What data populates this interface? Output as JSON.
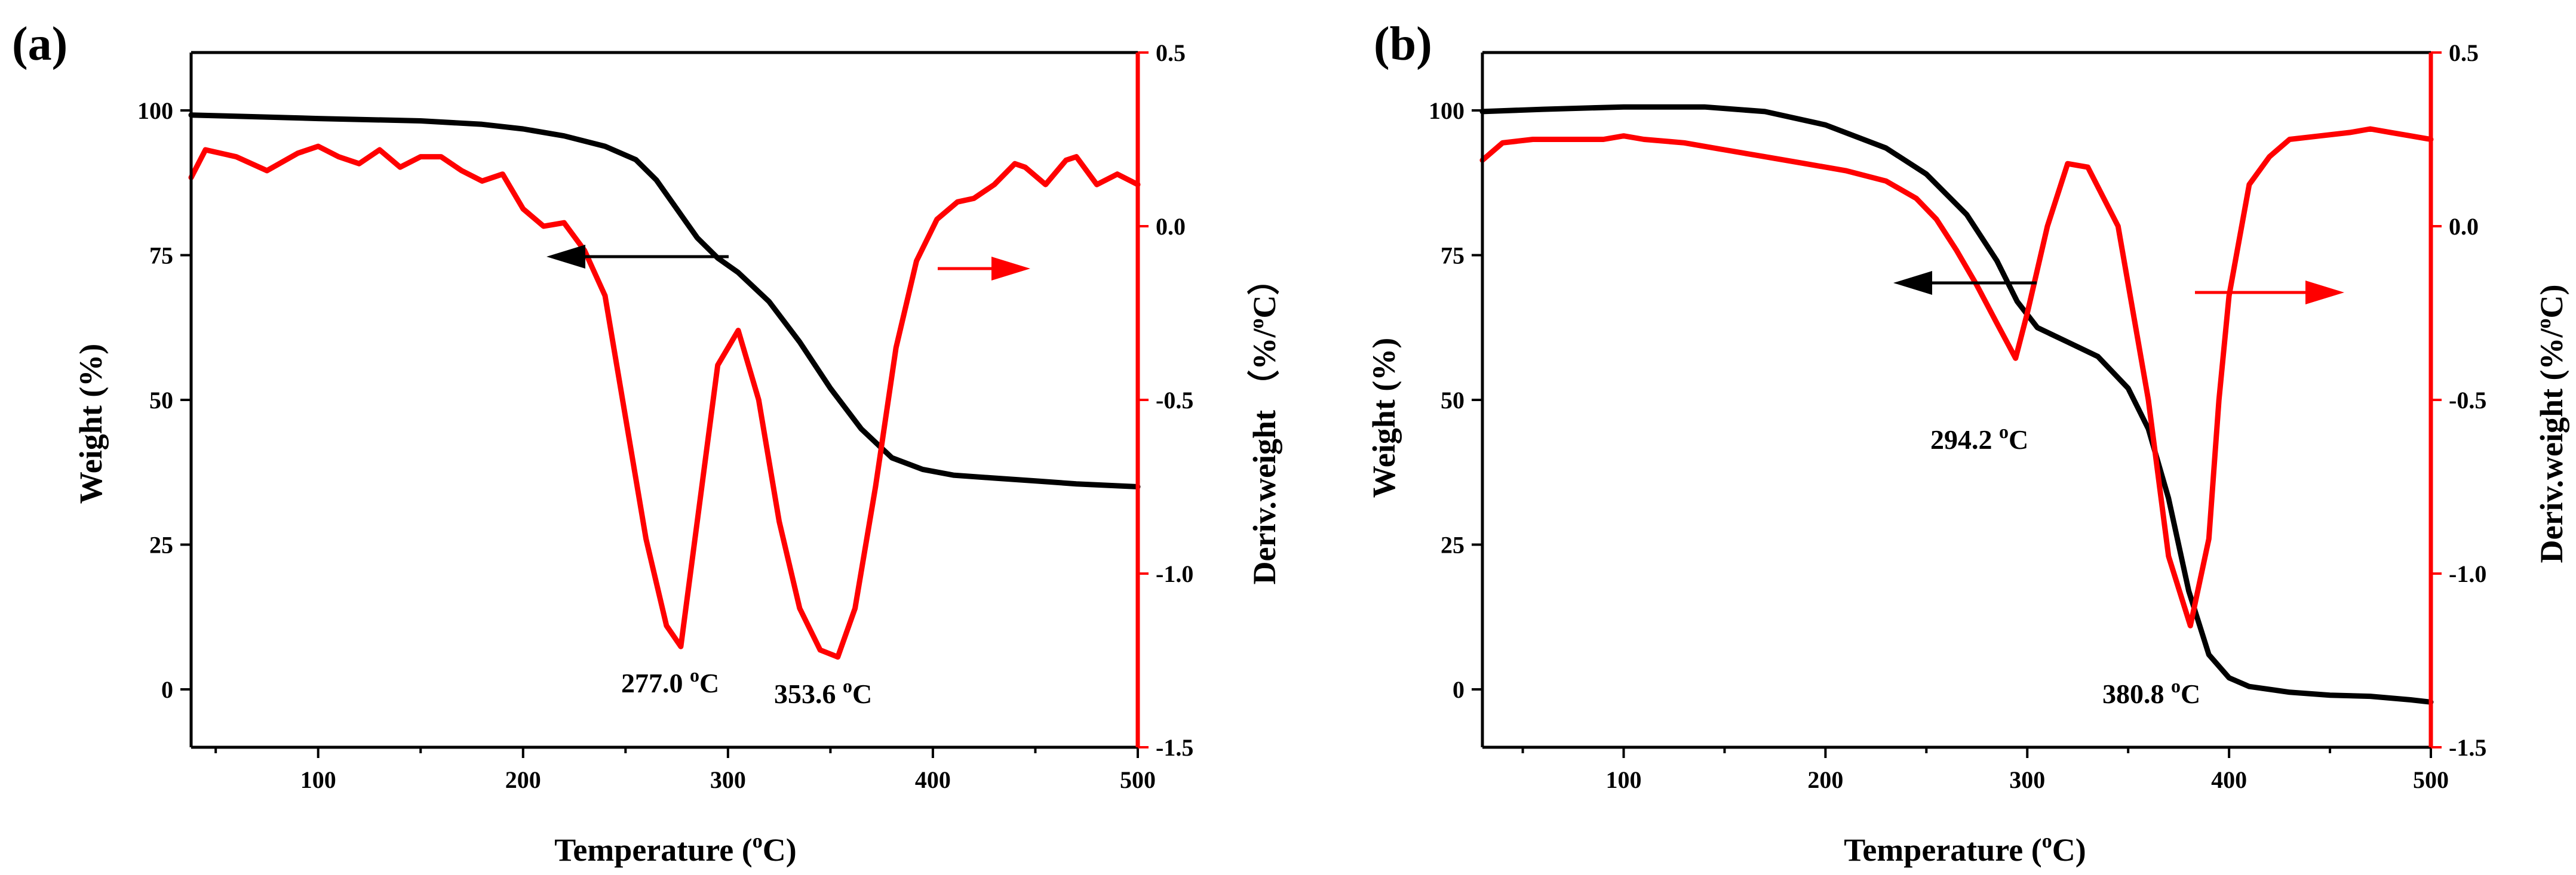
{
  "chart_data": [
    {
      "type": "line",
      "panel_label": "(a)",
      "xlabel": "Temperature (oC)",
      "xlabel_parts": [
        "Temperature (",
        "o",
        "C)"
      ],
      "ylabel": "Weight (%)",
      "y2label": "Deriv.weight （%/oC）",
      "y2label_parts": [
        "Deriv.weight （",
        "%/",
        "o",
        "C）"
      ],
      "xlim": [
        38,
        500
      ],
      "ylim": [
        -10,
        110
      ],
      "y2lim": [
        -1.5,
        0.5
      ],
      "x_ticks": [
        "100",
        "200",
        "300",
        "400",
        "500"
      ],
      "y_ticks": [
        "0",
        "25",
        "50",
        "75",
        "100"
      ],
      "y2_ticks": [
        "-1.5",
        "-1.0",
        "-0.5",
        "0.0",
        "0.5"
      ],
      "series": [
        {
          "axis": "left",
          "color": "#000000",
          "x": [
            38,
            60,
            100,
            150,
            180,
            200,
            220,
            240,
            255,
            265,
            275,
            285,
            295,
            305,
            320,
            335,
            350,
            365,
            380,
            395,
            410,
            430,
            450,
            470,
            500
          ],
          "y": [
            99.2,
            99,
            98.6,
            98.2,
            97.6,
            96.8,
            95.6,
            93.8,
            91.5,
            88,
            83,
            78,
            74.5,
            72,
            67,
            60,
            52,
            45,
            40,
            38,
            37,
            36.5,
            36,
            35.5,
            35
          ]
        },
        {
          "axis": "right",
          "color": "#ff0000",
          "x": [
            38,
            45,
            60,
            75,
            90,
            100,
            110,
            120,
            130,
            140,
            150,
            160,
            170,
            180,
            190,
            200,
            210,
            220,
            230,
            240,
            250,
            260,
            270,
            277,
            285,
            295,
            305,
            315,
            325,
            335,
            345,
            353.6,
            362,
            372,
            382,
            392,
            402,
            412,
            420,
            430,
            440,
            445,
            455,
            465,
            470,
            480,
            490,
            500
          ],
          "y": [
            0.14,
            0.22,
            0.2,
            0.16,
            0.21,
            0.23,
            0.2,
            0.18,
            0.22,
            0.17,
            0.2,
            0.2,
            0.16,
            0.13,
            0.15,
            0.05,
            0.0,
            0.01,
            -0.07,
            -0.2,
            -0.55,
            -0.9,
            -1.15,
            -1.21,
            -0.85,
            -0.4,
            -0.3,
            -0.5,
            -0.85,
            -1.1,
            -1.22,
            -1.24,
            -1.1,
            -0.75,
            -0.35,
            -0.1,
            0.02,
            0.07,
            0.08,
            0.12,
            0.18,
            0.17,
            0.12,
            0.19,
            0.2,
            0.12,
            0.15,
            0.12
          ]
        }
      ],
      "annotations": [
        {
          "text": "277.0 ",
          "sup": "o",
          "unit": "C"
        },
        {
          "text": "353.6 ",
          "sup": "o",
          "unit": "C"
        }
      ]
    },
    {
      "type": "line",
      "panel_label": "(b)",
      "xlabel": "Temperature (oC)",
      "xlabel_parts": [
        "Temperature (",
        "o",
        "C)"
      ],
      "ylabel": "Weight (%)",
      "y2label": "Deriv.weight (%/oC)",
      "y2label_parts": [
        "Deriv.weight (",
        "%/",
        "o",
        "C)"
      ],
      "xlim": [
        30,
        500
      ],
      "ylim": [
        -10,
        110
      ],
      "y2lim": [
        -1.5,
        0.5
      ],
      "x_ticks": [
        "100",
        "200",
        "300",
        "400",
        "500"
      ],
      "y_ticks": [
        "0",
        "25",
        "50",
        "75",
        "100"
      ],
      "y2_ticks": [
        "-1.5",
        "-1.0",
        "-0.5",
        "0.0",
        "0.5"
      ],
      "series": [
        {
          "axis": "left",
          "color": "#000000",
          "x": [
            30,
            60,
            100,
            140,
            170,
            200,
            230,
            250,
            270,
            285,
            295,
            305,
            320,
            335,
            350,
            360,
            370,
            380,
            390,
            400,
            410,
            430,
            450,
            470,
            490,
            500
          ],
          "y": [
            99.8,
            100.2,
            100.6,
            100.6,
            99.8,
            97.5,
            93.5,
            89,
            82,
            74,
            67,
            62.5,
            60,
            57.5,
            52,
            45,
            33,
            17,
            6,
            2,
            0.5,
            -0.5,
            -1,
            -1.2,
            -1.8,
            -2.2
          ],
          "note": "weight"
        },
        {
          "axis": "right",
          "color": "#ff0000",
          "x": [
            30,
            40,
            55,
            70,
            90,
            100,
            110,
            130,
            150,
            170,
            190,
            210,
            230,
            245,
            255,
            265,
            275,
            285,
            294.2,
            300,
            310,
            320,
            330,
            345,
            360,
            370,
            380.8,
            390,
            395,
            400,
            410,
            420,
            430,
            445,
            460,
            470,
            480,
            490,
            500
          ],
          "y": [
            0.19,
            0.24,
            0.25,
            0.25,
            0.25,
            0.26,
            0.25,
            0.24,
            0.22,
            0.2,
            0.18,
            0.16,
            0.13,
            0.08,
            0.02,
            -0.07,
            -0.17,
            -0.28,
            -0.38,
            -0.25,
            0.0,
            0.18,
            0.17,
            0.0,
            -0.5,
            -0.95,
            -1.15,
            -0.9,
            -0.5,
            -0.2,
            0.12,
            0.2,
            0.25,
            0.26,
            0.27,
            0.28,
            0.27,
            0.26,
            0.25
          ]
        }
      ],
      "annotations": [
        {
          "text": "294.2 ",
          "sup": "o",
          "unit": "C"
        },
        {
          "text": "380.8 ",
          "sup": "o",
          "unit": "C"
        }
      ]
    }
  ]
}
